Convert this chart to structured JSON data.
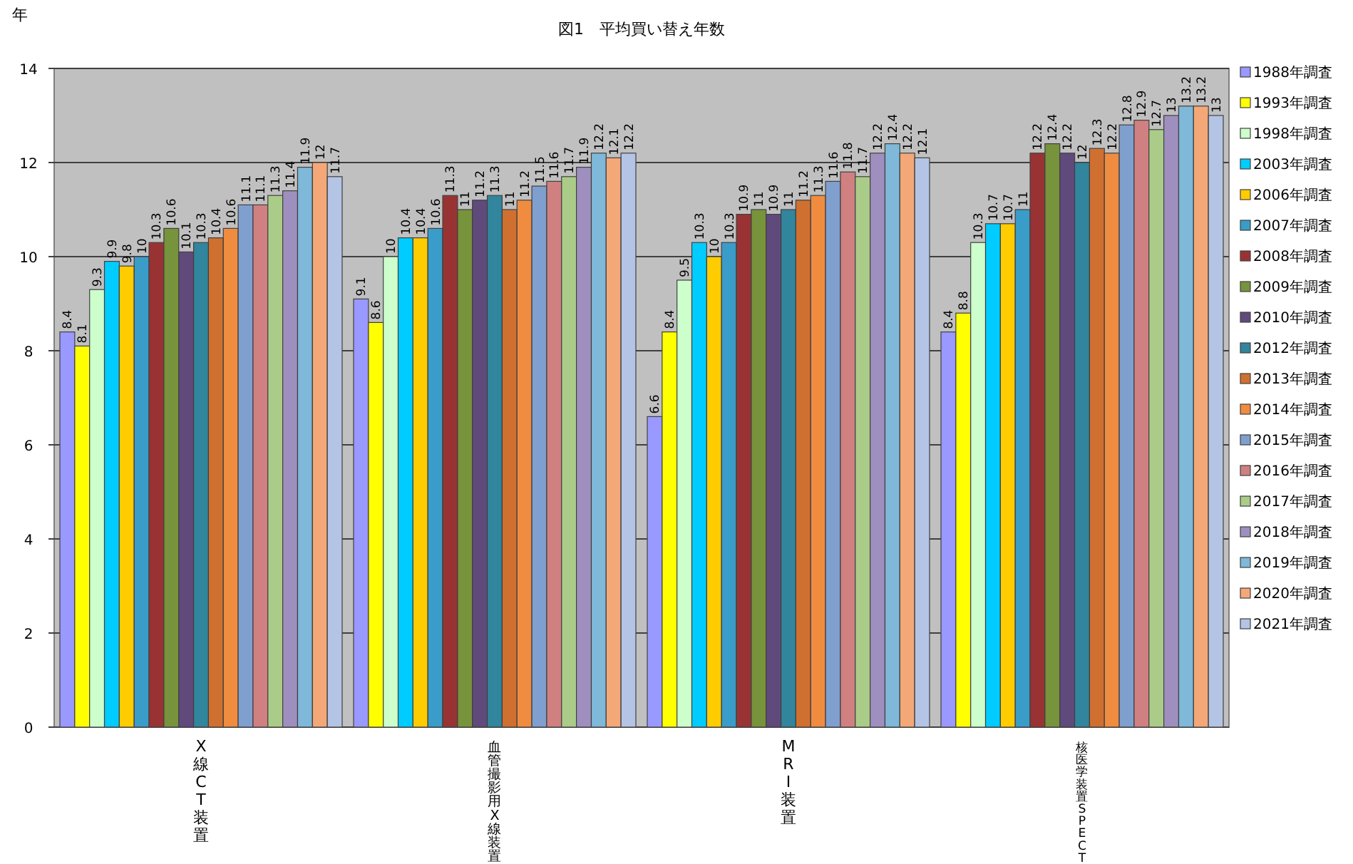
{
  "chart_data": {
    "type": "bar",
    "title": "図1　平均買い替え年数",
    "ylabel": "年",
    "categories": [
      "X線CT装置",
      "血管撮影用X線装置",
      "MRI装置",
      "核医学装置SPECT"
    ],
    "ylim": [
      0,
      14
    ],
    "yticks": [
      0,
      2,
      4,
      6,
      8,
      10,
      12,
      14
    ],
    "grid": "y",
    "legend": "right",
    "data_labels": true,
    "series": [
      {
        "name": "1988年調査",
        "color": "#9999ff",
        "values": [
          8.4,
          9.1,
          6.6,
          8.4
        ]
      },
      {
        "name": "1993年調査",
        "color": "#ffff00",
        "values": [
          8.1,
          8.6,
          8.4,
          8.8
        ]
      },
      {
        "name": "1998年調査",
        "color": "#ccffcc",
        "values": [
          9.3,
          10.0,
          9.5,
          10.3
        ]
      },
      {
        "name": "2003年調査",
        "color": "#00ccff",
        "values": [
          9.9,
          10.4,
          10.3,
          10.7
        ]
      },
      {
        "name": "2006年調査",
        "color": "#ffcc00",
        "values": [
          9.8,
          10.4,
          10.0,
          10.7
        ]
      },
      {
        "name": "2007年調査",
        "color": "#3a9cc8",
        "values": [
          10.0,
          10.6,
          10.3,
          11.0
        ]
      },
      {
        "name": "2008年調査",
        "color": "#993333",
        "values": [
          10.3,
          11.3,
          10.9,
          12.2
        ]
      },
      {
        "name": "2009年調査",
        "color": "#77933c",
        "values": [
          10.6,
          11.0,
          11.0,
          12.4
        ]
      },
      {
        "name": "2010年調査",
        "color": "#604a7b",
        "values": [
          10.1,
          11.2,
          10.9,
          12.2
        ]
      },
      {
        "name": "2012年調査",
        "color": "#31859c",
        "values": [
          10.3,
          11.3,
          11.0,
          12.0
        ]
      },
      {
        "name": "2013年調査",
        "color": "#d07030",
        "values": [
          10.4,
          11.0,
          11.2,
          12.3
        ]
      },
      {
        "name": "2014年調査",
        "color": "#f08c40",
        "values": [
          10.6,
          11.2,
          11.3,
          12.2
        ]
      },
      {
        "name": "2015年調査",
        "color": "#7f9fcf",
        "values": [
          11.1,
          11.5,
          11.6,
          12.8
        ]
      },
      {
        "name": "2016年調査",
        "color": "#d08080",
        "values": [
          11.1,
          11.6,
          11.8,
          12.9
        ]
      },
      {
        "name": "2017年調査",
        "color": "#aacc88",
        "values": [
          11.3,
          11.7,
          11.7,
          12.7
        ]
      },
      {
        "name": "2018年調査",
        "color": "#9f8fbf",
        "values": [
          11.4,
          11.9,
          12.2,
          13.0
        ]
      },
      {
        "name": "2019年調査",
        "color": "#7fb8d8",
        "values": [
          11.9,
          12.2,
          12.4,
          13.2
        ]
      },
      {
        "name": "2020年調査",
        "color": "#f4a878",
        "values": [
          12.0,
          12.1,
          12.2,
          13.2
        ]
      },
      {
        "name": "2021年調査",
        "color": "#b4c4e4",
        "values": [
          11.7,
          12.2,
          12.1,
          13.0
        ]
      }
    ]
  }
}
